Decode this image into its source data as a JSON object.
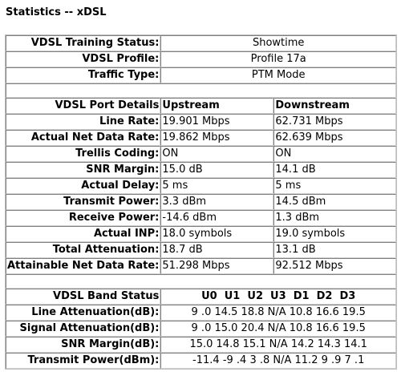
{
  "page": {
    "title": "Statistics -- xDSL"
  },
  "summary": [
    {
      "label": "VDSL Training Status:",
      "value": "Showtime"
    },
    {
      "label": "VDSL Profile:",
      "value": "Profile 17a"
    },
    {
      "label": "Traffic Type:",
      "value": "PTM Mode"
    }
  ],
  "port": {
    "header": {
      "label": "VDSL Port Details",
      "upstream": "Upstream",
      "downstream": "Downstream"
    },
    "rows": [
      {
        "label": "Line Rate:",
        "up": "19.901 Mbps",
        "down": "62.731 Mbps"
      },
      {
        "label": "Actual Net Data Rate:",
        "up": "19.862 Mbps",
        "down": "62.639 Mbps"
      },
      {
        "label": "Trellis Coding:",
        "up": "ON",
        "down": "ON"
      },
      {
        "label": "SNR Margin:",
        "up": "15.0 dB",
        "down": "14.1 dB"
      },
      {
        "label": "Actual Delay:",
        "up": "5 ms",
        "down": "5 ms"
      },
      {
        "label": "Transmit Power:",
        "up": "3.3 dBm",
        "down": "14.5 dBm"
      },
      {
        "label": "Receive Power:",
        "up": "-14.6 dBm",
        "down": "1.3 dBm"
      },
      {
        "label": "Actual INP:",
        "up": "18.0 symbols",
        "down": "19.0 symbols"
      },
      {
        "label": "Total Attenuation:",
        "up": "18.7 dB",
        "down": "13.1 dB"
      },
      {
        "label": "Attainable Net Data Rate:",
        "up": "51.298 Mbps",
        "down": "92.512 Mbps"
      }
    ]
  },
  "band": {
    "header": {
      "label": "VDSL Band Status",
      "values": "U0  U1  U2  U3  D1  D2  D3"
    },
    "rows": [
      {
        "label": "Line Attenuation(dB):",
        "values": "9 .0 14.5 18.8 N/A 10.8 16.6 19.5"
      },
      {
        "label": "Signal Attenuation(dB):",
        "values": "9 .0 15.0 20.4 N/A 10.8 16.6 19.5"
      },
      {
        "label": "SNR Margin(dB):",
        "values": "15.0 14.8 15.1 N/A 14.2 14.3 14.1"
      },
      {
        "label": "Transmit Power(dBm):",
        "values": "-11.4 -9 .4 3 .8 N/A 11.2 9 .9 7 .1"
      }
    ]
  }
}
